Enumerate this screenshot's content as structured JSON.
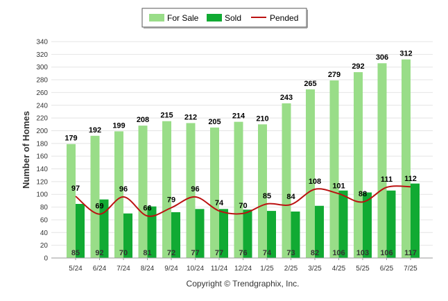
{
  "chart_data": {
    "type": "bar",
    "ylabel": "Number of Homes",
    "ylim": [
      0,
      340
    ],
    "ytick_step": 20,
    "grid": true,
    "legend_position": "top-center",
    "categories": [
      "5/24",
      "6/24",
      "7/24",
      "8/24",
      "9/24",
      "10/24",
      "11/24",
      "12/24",
      "1/25",
      "2/25",
      "3/25",
      "4/25",
      "5/25",
      "6/25",
      "7/25"
    ],
    "series": [
      {
        "name": "For Sale",
        "kind": "bar",
        "color": "#99dd88",
        "values": [
          179,
          192,
          199,
          208,
          215,
          212,
          205,
          214,
          210,
          243,
          265,
          279,
          292,
          306,
          312
        ]
      },
      {
        "name": "Sold",
        "kind": "bar",
        "color": "#11aa33",
        "values": [
          85,
          92,
          70,
          81,
          72,
          77,
          77,
          76,
          74,
          73,
          82,
          106,
          103,
          106,
          117
        ]
      },
      {
        "name": "Pended",
        "kind": "line",
        "color": "#bb1111",
        "values": [
          97,
          69,
          96,
          66,
          79,
          96,
          74,
          70,
          85,
          84,
          108,
          101,
          88,
          111,
          112
        ]
      }
    ]
  },
  "copyright": "Copyright © Trendgraphix, Inc."
}
